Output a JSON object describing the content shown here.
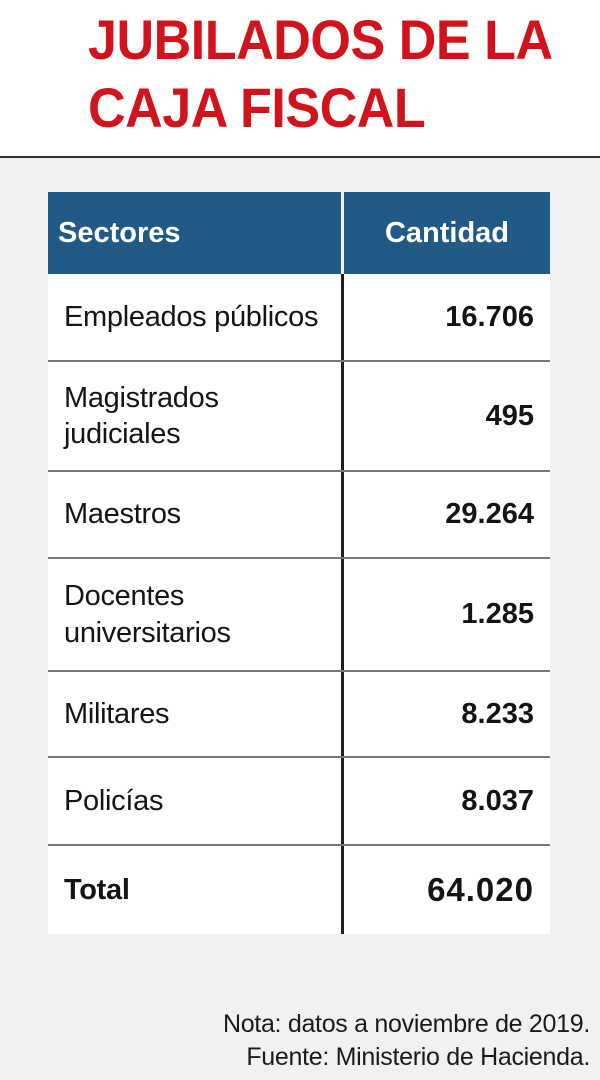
{
  "title": {
    "line1": "JUBILADOS DE LA",
    "line2": "CAJA FISCAL"
  },
  "table": {
    "headers": {
      "sector": "Sectores",
      "quantity": "Cantidad"
    },
    "rows": [
      {
        "sector": "Empleados públicos",
        "quantity": "16.706"
      },
      {
        "sector": "Magistrados judiciales",
        "quantity": "495"
      },
      {
        "sector": "Maestros",
        "quantity": "29.264"
      },
      {
        "sector": "Docentes universitarios",
        "quantity": "1.285"
      },
      {
        "sector": "Militares",
        "quantity": "8.233"
      },
      {
        "sector": "Policías",
        "quantity": "8.037"
      }
    ],
    "total": {
      "label": "Total",
      "quantity": "64.020"
    }
  },
  "notes": {
    "note": "Nota: datos a noviembre de 2019.",
    "source": "Fuente: Ministerio de Hacienda."
  },
  "colors": {
    "title": "#d1141c",
    "header_background": "#215a87",
    "header_text": "#ffffff",
    "page_background": "#f1f1f1"
  },
  "chart_data": {
    "type": "table",
    "title": "JUBILADOS DE LA CAJA FISCAL",
    "columns": [
      "Sectores",
      "Cantidad"
    ],
    "categories": [
      "Empleados públicos",
      "Magistrados judiciales",
      "Maestros",
      "Docentes universitarios",
      "Militares",
      "Policías"
    ],
    "values": [
      16706,
      495,
      29264,
      1285,
      8233,
      8037
    ],
    "total": 64020
  }
}
